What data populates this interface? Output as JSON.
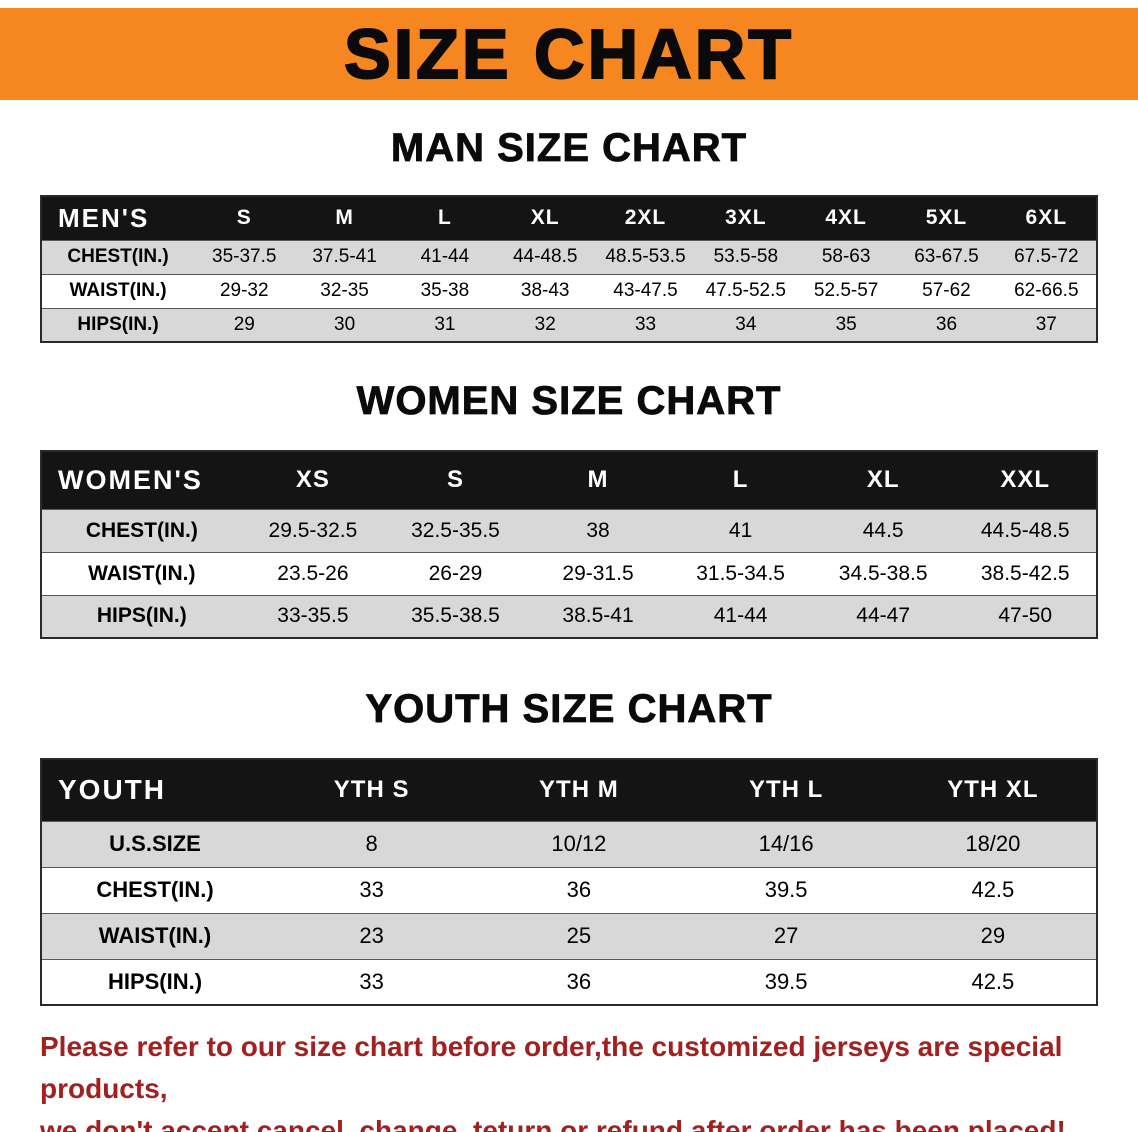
{
  "banner": {
    "title": "SIZE CHART"
  },
  "sections": [
    {
      "heading": "MAN SIZE CHART",
      "table": {
        "header": [
          "MEN'S",
          "S",
          "M",
          "L",
          "XL",
          "2XL",
          "3XL",
          "4XL",
          "5XL",
          "6XL"
        ],
        "rows": [
          [
            "CHEST(IN.)",
            "35-37.5",
            "37.5-41",
            "41-44",
            "44-48.5",
            "48.5-53.5",
            "53.5-58",
            "58-63",
            "63-67.5",
            "67.5-72"
          ],
          [
            "WAIST(IN.)",
            "29-32",
            "32-35",
            "35-38",
            "38-43",
            "43-47.5",
            "47.5-52.5",
            "52.5-57",
            "57-62",
            "62-66.5"
          ],
          [
            "HIPS(IN.)",
            "29",
            "30",
            "31",
            "32",
            "33",
            "34",
            "35",
            "36",
            "37"
          ]
        ]
      }
    },
    {
      "heading": "WOMEN SIZE CHART",
      "table": {
        "header": [
          "WOMEN'S",
          "XS",
          "S",
          "M",
          "L",
          "XL",
          "XXL"
        ],
        "rows": [
          [
            "CHEST(IN.)",
            "29.5-32.5",
            "32.5-35.5",
            "38",
            "41",
            "44.5",
            "44.5-48.5"
          ],
          [
            "WAIST(IN.)",
            "23.5-26",
            "26-29",
            "29-31.5",
            "31.5-34.5",
            "34.5-38.5",
            "38.5-42.5"
          ],
          [
            "HIPS(IN.)",
            "33-35.5",
            "35.5-38.5",
            "38.5-41",
            "41-44",
            "44-47",
            "47-50"
          ]
        ]
      }
    },
    {
      "heading": "YOUTH SIZE CHART",
      "table": {
        "header": [
          "YOUTH",
          "YTH S",
          "YTH M",
          "YTH L",
          "YTH XL"
        ],
        "rows": [
          [
            "U.S.SIZE",
            "8",
            "10/12",
            "14/16",
            "18/20"
          ],
          [
            "CHEST(IN.)",
            "33",
            "36",
            "39.5",
            "42.5"
          ],
          [
            "WAIST(IN.)",
            "23",
            "25",
            "27",
            "29"
          ],
          [
            "HIPS(IN.)",
            "33",
            "36",
            "39.5",
            "42.5"
          ]
        ]
      }
    }
  ],
  "disclaimer": {
    "line1": "Please refer to our size chart before order,the customized jerseys are special products,",
    "line2": "we don't accept cancel, change, teturn or refund after order has been placed!"
  },
  "colors": {
    "banner_bg": "#f6861f",
    "table_header_bg": "#141414",
    "row_alt_bg": "#d8d8d8",
    "disclaimer_red": "#a22020"
  }
}
